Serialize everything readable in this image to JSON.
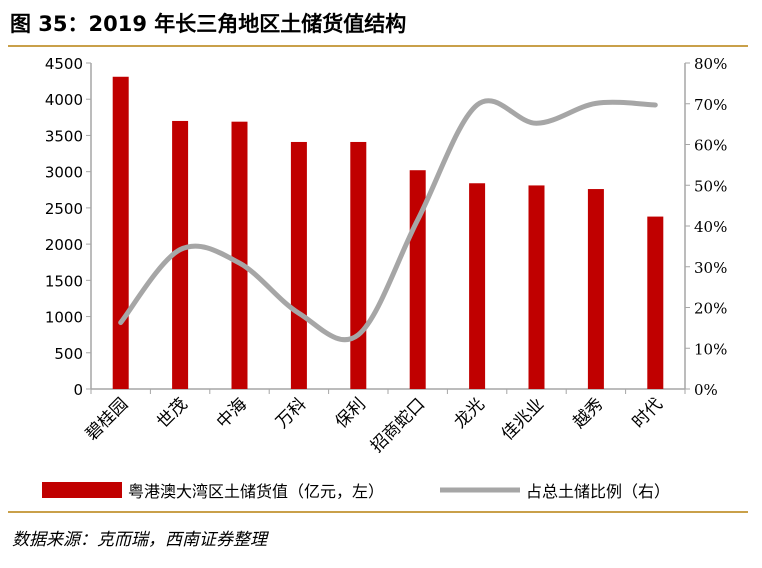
{
  "title": "图 35：2019 年长三角地区土储货值结构",
  "source": "数据来源：克而瑞，西南证券整理",
  "chart_data": {
    "type": "bar+line",
    "categories": [
      "碧桂园",
      "世茂",
      "中海",
      "万科",
      "保利",
      "招商蛇口",
      "龙光",
      "佳兆业",
      "越秀",
      "时代"
    ],
    "series": [
      {
        "name": "粤港澳大湾区土储货值（亿元，左）",
        "type": "bar",
        "axis": "left",
        "color": "#c00000",
        "values": [
          4310,
          3700,
          3690,
          3410,
          3410,
          3020,
          2840,
          2810,
          2760,
          2380
        ]
      },
      {
        "name": "占总土储比例（右）",
        "type": "line",
        "axis": "right",
        "color": "#a6a6a6",
        "values": [
          16.3,
          34.2,
          30.9,
          18.6,
          13.3,
          41.5,
          69.7,
          65.2,
          70.1,
          69.7
        ]
      }
    ],
    "left_axis": {
      "ylim": [
        0,
        4500
      ],
      "ticks": [
        "0",
        "500",
        "1000",
        "1500",
        "2000",
        "2500",
        "3000",
        "3500",
        "4000",
        "4500"
      ]
    },
    "right_axis": {
      "ylim": [
        0,
        80
      ],
      "ticks": [
        "0%",
        "10%",
        "20%",
        "30%",
        "40%",
        "50%",
        "60%",
        "70%",
        "80%"
      ]
    },
    "grid": false,
    "legend": "bottom"
  }
}
